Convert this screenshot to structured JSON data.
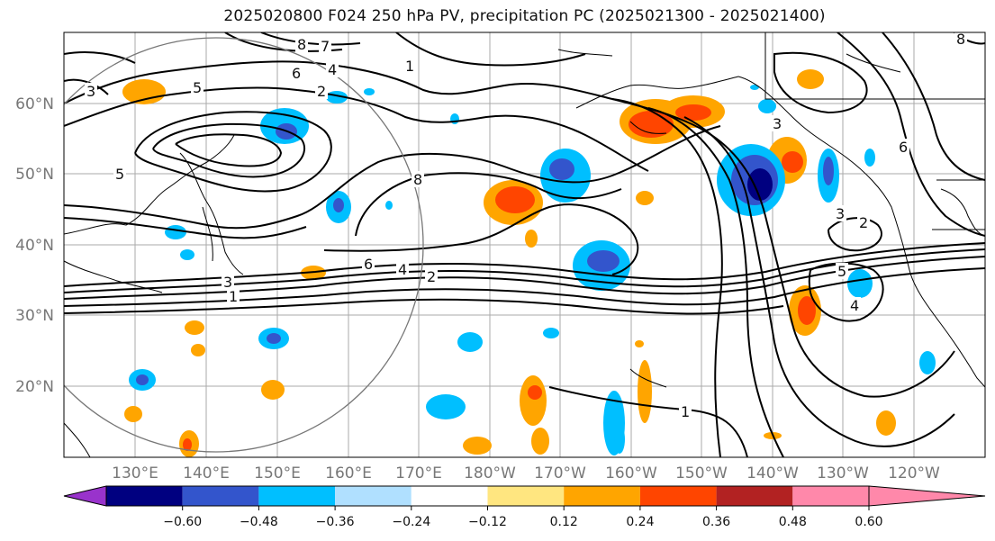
{
  "title": "2025020800 F024 250 hPa PV, precipitation PC (2025021300 - 2025021400)",
  "lat_labels": [
    "60°N",
    "50°N",
    "40°N",
    "30°N",
    "20°N"
  ],
  "lon_labels": [
    "130°E",
    "140°E",
    "150°E",
    "160°E",
    "170°E",
    "180°W",
    "170°W",
    "160°W",
    "150°W",
    "140°W",
    "130°W",
    "120°W"
  ],
  "colorbar": {
    "ticks": [
      "−0.60",
      "−0.48",
      "−0.36",
      "−0.24",
      "−0.12",
      "0.12",
      "0.24",
      "0.36",
      "0.48",
      "0.60"
    ],
    "colors": [
      "#9933cc",
      "#000080",
      "#3355cc",
      "#00bfff",
      "#b0e0ff",
      "#ffffff",
      "#ffe680",
      "#ffa500",
      "#ff4500",
      "#b22222",
      "#ff88aa"
    ]
  },
  "contour_labels": [
    "8",
    "7",
    "6",
    "4",
    "1",
    "2",
    "3",
    "5",
    "8",
    "6",
    "4",
    "2",
    "3",
    "1",
    "5",
    "1",
    "3",
    "2",
    "5",
    "4",
    "3",
    "6",
    "8"
  ]
}
